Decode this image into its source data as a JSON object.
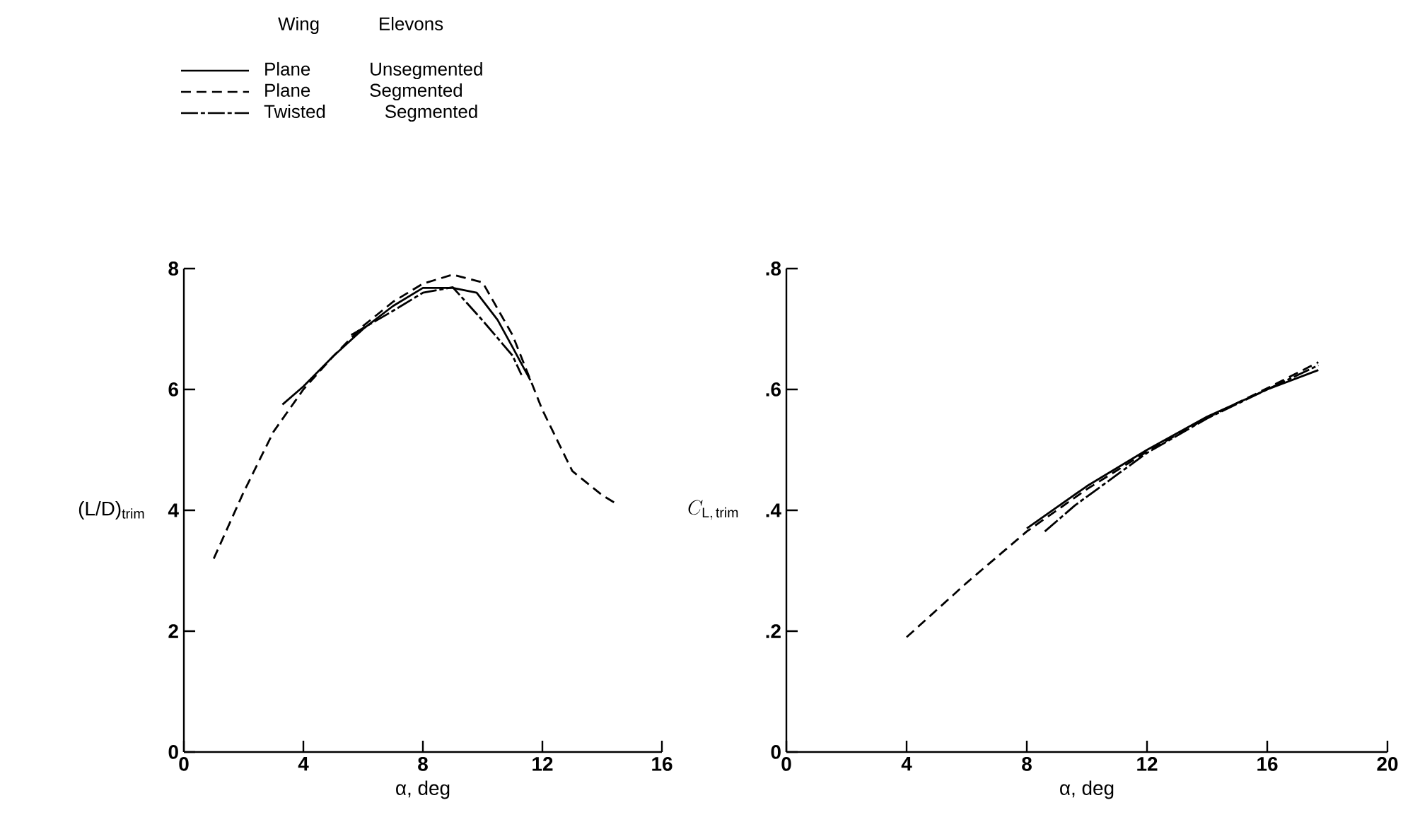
{
  "chart_data": [
    {
      "type": "line",
      "xlabel": "α, deg",
      "ylabel": "(L/D)$_{trim}$",
      "legend_title": "Wing Elevons",
      "legend": "top left",
      "xlim": [
        0,
        16
      ],
      "xticks": [
        0,
        4,
        8,
        12,
        16
      ],
      "ylim": [
        0,
        8
      ],
      "yticks": [
        0,
        2,
        4,
        6,
        8
      ],
      "series": [
        {
          "name": "Plane Unsegmented",
          "color": "#000000",
          "line_style": "solid",
          "x": [
            3.3,
            4,
            5,
            6,
            7,
            8,
            9,
            9.8,
            10.5,
            11,
            11.6
          ],
          "values": [
            5.75,
            6.05,
            6.55,
            7.0,
            7.38,
            7.68,
            7.68,
            7.6,
            7.15,
            6.7,
            6.15
          ]
        },
        {
          "name": "Plane Segmented",
          "color": "#000000",
          "line_style": "dashed",
          "x": [
            1,
            2,
            3,
            4,
            5,
            6,
            7,
            8,
            9,
            10,
            11,
            12,
            13,
            14,
            14.5
          ],
          "values": [
            3.2,
            4.3,
            5.3,
            6.0,
            6.55,
            7.05,
            7.45,
            7.75,
            7.9,
            7.77,
            6.9,
            5.66,
            4.65,
            4.25,
            4.1
          ]
        },
        {
          "name": "Twisted Segmented",
          "color": "#000000",
          "line_style": "dashed",
          "x": [
            5.6,
            7,
            8,
            9,
            10,
            11,
            11.3
          ],
          "values": [
            6.9,
            7.3,
            7.6,
            7.69,
            7.14,
            6.56,
            6.24
          ]
        }
      ]
    },
    {
      "type": "line",
      "xlabel": "α, deg",
      "ylabel": "C_{\\mathrm{L,\\,trim}}",
      "xlim": [
        0,
        20
      ],
      "xticks": [
        0,
        4,
        8,
        12,
        16,
        20
      ],
      "ylim": [
        0,
        0.8
      ],
      "yticks": [
        0,
        {
          "value": 0.2,
          "label": ".2"
        },
        {
          "value": 0.4,
          "label": ".4"
        },
        {
          "value": 0.6,
          "label": ".6"
        },
        {
          "value": 0.8,
          "label": ".8"
        }
      ],
      "series": [
        {
          "color": "#000000",
          "line_style": "solid",
          "x": [
            8,
            10,
            12,
            14,
            16,
            17.7
          ],
          "values": [
            0.37,
            0.44,
            0.5,
            0.555,
            0.6,
            0.632
          ]
        },
        {
          "color": "#000000",
          "line_style": "dashed",
          "x": [
            4,
            6,
            8,
            10,
            12,
            14,
            16,
            17.7
          ],
          "values": [
            0.19,
            0.28,
            0.365,
            0.435,
            0.497,
            0.553,
            0.602,
            0.645
          ]
        },
        {
          "color": "#000000",
          "line_style": "dashed",
          "x": [
            8.6,
            9.6,
            12,
            14,
            16,
            17.7
          ],
          "values": [
            0.365,
            0.408,
            0.495,
            0.552,
            0.6,
            0.64
          ]
        }
      ]
    }
  ]
}
